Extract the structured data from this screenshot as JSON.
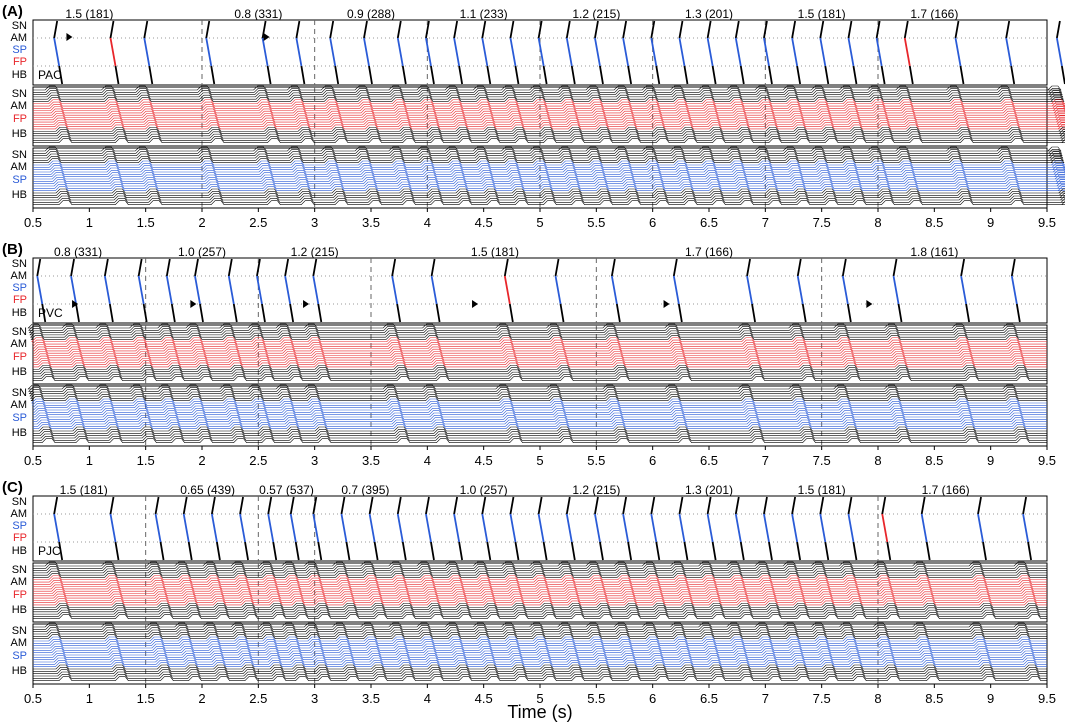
{
  "chart_data": {
    "type": "line",
    "x_axis": {
      "range": [
        0.5,
        9.5
      ],
      "ticks": [
        "0.5",
        "1",
        "1.5",
        "2",
        "2.5",
        "3",
        "3.5",
        "4",
        "4.5",
        "5",
        "5.5",
        "6",
        "6.5",
        "7",
        "7.5",
        "8",
        "8.5",
        "9",
        "9.5"
      ],
      "label": "Time (s)"
    },
    "colors": {
      "black": "#000000",
      "fp": "#e8262b",
      "sp": "#2a5bd7",
      "dotted": "#9a9a9a"
    },
    "row_labels": [
      "SN",
      "AM",
      "SP",
      "FP",
      "HB"
    ],
    "panels": [
      {
        "id": "A",
        "label": "(A)",
        "trace_label": "PAC",
        "stimulus_times": [
          2.0,
          3.0,
          4.0,
          5.0,
          6.0,
          7.0,
          8.0
        ],
        "premature_times": [
          0.85,
          2.6
        ],
        "segments": [
          {
            "label": "1.5 (181)",
            "x": 1.0
          },
          {
            "label": "0.8 (331)",
            "x": 2.5
          },
          {
            "label": "0.9 (288)",
            "x": 3.5
          },
          {
            "label": "1.1 (233)",
            "x": 4.5
          },
          {
            "label": "1.2 (215)",
            "x": 5.5
          },
          {
            "label": "1.3 (201)",
            "x": 6.5
          },
          {
            "label": "1.5 (181)",
            "x": 7.5
          },
          {
            "label": "1.7 (166)",
            "x": 8.5
          }
        ],
        "beats": [
          0.75,
          1.25,
          1.55,
          2.1,
          2.6,
          2.9,
          3.2,
          3.5,
          3.8,
          4.05,
          4.3,
          4.55,
          4.8,
          5.05,
          5.3,
          5.55,
          5.8,
          6.05,
          6.3,
          6.55,
          6.8,
          7.05,
          7.3,
          7.55,
          7.8,
          8.05,
          8.3,
          8.75,
          9.2,
          9.65
        ],
        "red_beats": [
          1.2,
          8.3
        ]
      },
      {
        "id": "B",
        "label": "(B)",
        "trace_label": "PVC",
        "stimulus_times": [
          1.5,
          2.5,
          3.5,
          5.5,
          7.5
        ],
        "premature_times": [
          0.9,
          1.95,
          2.95,
          4.45,
          6.15,
          7.95
        ],
        "segments": [
          {
            "label": "0.8 (331)",
            "x": 0.9
          },
          {
            "label": "1.0 (257)",
            "x": 2.0
          },
          {
            "label": "1.2 (215)",
            "x": 3.0
          },
          {
            "label": "1.5 (181)",
            "x": 4.6
          },
          {
            "label": "1.7 (166)",
            "x": 6.5
          },
          {
            "label": "1.8 (161)",
            "x": 8.5
          }
        ],
        "beats": [
          0.6,
          0.9,
          1.2,
          1.5,
          1.75,
          2.0,
          2.3,
          2.55,
          2.8,
          3.05,
          3.75,
          4.1,
          4.75,
          5.2,
          5.7,
          6.25,
          6.9,
          7.35,
          7.75,
          8.2,
          8.8,
          9.25
        ],
        "red_beats": [
          4.75,
          6.45,
          8.3
        ]
      },
      {
        "id": "C",
        "label": "(C)",
        "trace_label": "PJC",
        "stimulus_times": [
          1.5,
          2.5,
          3.0,
          8.0
        ],
        "premature_times": [],
        "segments": [
          {
            "label": "1.5 (181)",
            "x": 0.95
          },
          {
            "label": "0.65 (439)",
            "x": 2.05
          },
          {
            "label": "0.57 (537)",
            "x": 2.75
          },
          {
            "label": "0.7 (395)",
            "x": 3.45
          },
          {
            "label": "1.0 (257)",
            "x": 4.5
          },
          {
            "label": "1.2 (215)",
            "x": 5.5
          },
          {
            "label": "1.3 (201)",
            "x": 6.5
          },
          {
            "label": "1.5 (181)",
            "x": 7.5
          },
          {
            "label": "1.7 (166)",
            "x": 8.6
          }
        ],
        "beats": [
          0.75,
          1.25,
          1.65,
          1.9,
          2.15,
          2.4,
          2.65,
          2.85,
          3.05,
          3.3,
          3.55,
          3.8,
          4.05,
          4.3,
          4.55,
          4.8,
          5.05,
          5.3,
          5.55,
          5.8,
          6.05,
          6.3,
          6.55,
          6.8,
          7.05,
          7.3,
          7.55,
          7.8,
          8.1,
          8.45,
          8.95,
          9.35
        ],
        "red_beats": [
          8.1
        ]
      }
    ]
  }
}
